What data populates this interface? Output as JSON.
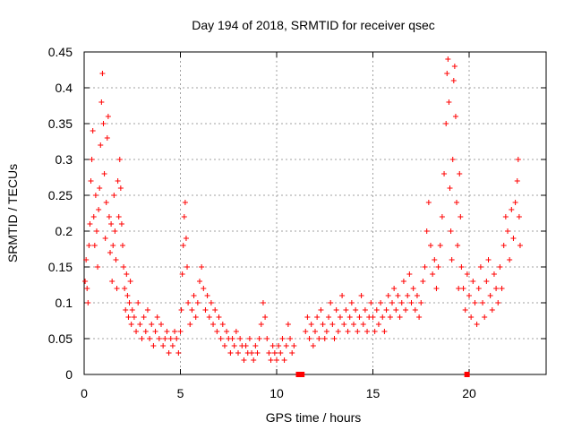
{
  "chart_data": {
    "type": "scatter",
    "title": "Day 194 of 2018, SRMTID for receiver qsec",
    "xlabel": "GPS time / hours",
    "ylabel": "SRMTID / TECUs",
    "xlim": [
      0,
      24.0
    ],
    "ylim": [
      0,
      0.45
    ],
    "x_ticks": [
      0,
      5,
      10,
      15,
      20
    ],
    "x_tick_labels": [
      "0",
      "5",
      "10",
      "15",
      "20"
    ],
    "y_ticks": [
      0,
      0.05,
      0.1,
      0.15,
      0.2,
      0.25,
      0.3,
      0.35,
      0.4,
      0.45
    ],
    "y_tick_labels": [
      "0",
      "0.05",
      "0.1",
      "0.15",
      "0.2",
      "0.25",
      "0.3",
      "0.35",
      "0.4",
      "0.45"
    ],
    "grid": true,
    "marker": "plus",
    "color": "#ff0000",
    "series": [
      {
        "name": "SRMTID",
        "points": [
          [
            0.05,
            0.13
          ],
          [
            0.1,
            0.16
          ],
          [
            0.15,
            0.12
          ],
          [
            0.2,
            0.1
          ],
          [
            0.25,
            0.18
          ],
          [
            0.3,
            0.21
          ],
          [
            0.35,
            0.27
          ],
          [
            0.4,
            0.3
          ],
          [
            0.45,
            0.34
          ],
          [
            0.5,
            0.22
          ],
          [
            0.55,
            0.18
          ],
          [
            0.6,
            0.25
          ],
          [
            0.65,
            0.2
          ],
          [
            0.7,
            0.15
          ],
          [
            0.75,
            0.23
          ],
          [
            0.8,
            0.26
          ],
          [
            0.85,
            0.32
          ],
          [
            0.9,
            0.38
          ],
          [
            0.95,
            0.42
          ],
          [
            1.0,
            0.35
          ],
          [
            1.05,
            0.28
          ],
          [
            1.1,
            0.19
          ],
          [
            1.15,
            0.24
          ],
          [
            1.2,
            0.33
          ],
          [
            1.25,
            0.36
          ],
          [
            1.3,
            0.22
          ],
          [
            1.35,
            0.17
          ],
          [
            1.4,
            0.21
          ],
          [
            1.45,
            0.13
          ],
          [
            1.5,
            0.18
          ],
          [
            1.55,
            0.25
          ],
          [
            1.6,
            0.2
          ],
          [
            1.65,
            0.16
          ],
          [
            1.7,
            0.12
          ],
          [
            1.75,
            0.27
          ],
          [
            1.8,
            0.22
          ],
          [
            1.85,
            0.3
          ],
          [
            1.9,
            0.26
          ],
          [
            1.95,
            0.21
          ],
          [
            2.0,
            0.18
          ],
          [
            2.05,
            0.15
          ],
          [
            2.1,
            0.12
          ],
          [
            2.15,
            0.09
          ],
          [
            2.2,
            0.14
          ],
          [
            2.25,
            0.11
          ],
          [
            2.3,
            0.08
          ],
          [
            2.35,
            0.1
          ],
          [
            2.4,
            0.13
          ],
          [
            2.45,
            0.07
          ],
          [
            2.5,
            0.09
          ],
          [
            2.6,
            0.08
          ],
          [
            2.7,
            0.06
          ],
          [
            2.8,
            0.1
          ],
          [
            2.9,
            0.07
          ],
          [
            3.0,
            0.05
          ],
          [
            3.1,
            0.08
          ],
          [
            3.2,
            0.06
          ],
          [
            3.3,
            0.09
          ],
          [
            3.4,
            0.05
          ],
          [
            3.5,
            0.07
          ],
          [
            3.6,
            0.04
          ],
          [
            3.7,
            0.06
          ],
          [
            3.8,
            0.08
          ],
          [
            3.9,
            0.05
          ],
          [
            4.0,
            0.07
          ],
          [
            4.1,
            0.04
          ],
          [
            4.2,
            0.05
          ],
          [
            4.3,
            0.06
          ],
          [
            4.4,
            0.03
          ],
          [
            4.5,
            0.05
          ],
          [
            4.6,
            0.04
          ],
          [
            4.7,
            0.06
          ],
          [
            4.8,
            0.05
          ],
          [
            4.9,
            0.03
          ],
          [
            5.0,
            0.06
          ],
          [
            5.05,
            0.09
          ],
          [
            5.1,
            0.14
          ],
          [
            5.15,
            0.18
          ],
          [
            5.2,
            0.22
          ],
          [
            5.25,
            0.24
          ],
          [
            5.3,
            0.19
          ],
          [
            5.35,
            0.15
          ],
          [
            5.4,
            0.1
          ],
          [
            5.5,
            0.07
          ],
          [
            5.6,
            0.09
          ],
          [
            5.7,
            0.11
          ],
          [
            5.8,
            0.08
          ],
          [
            5.9,
            0.1
          ],
          [
            6.0,
            0.13
          ],
          [
            6.1,
            0.15
          ],
          [
            6.2,
            0.12
          ],
          [
            6.3,
            0.09
          ],
          [
            6.4,
            0.11
          ],
          [
            6.5,
            0.08
          ],
          [
            6.6,
            0.1
          ],
          [
            6.7,
            0.07
          ],
          [
            6.8,
            0.09
          ],
          [
            6.9,
            0.06
          ],
          [
            7.0,
            0.08
          ],
          [
            7.1,
            0.05
          ],
          [
            7.2,
            0.07
          ],
          [
            7.3,
            0.04
          ],
          [
            7.4,
            0.06
          ],
          [
            7.5,
            0.05
          ],
          [
            7.6,
            0.03
          ],
          [
            7.7,
            0.05
          ],
          [
            7.8,
            0.04
          ],
          [
            7.9,
            0.06
          ],
          [
            8.0,
            0.03
          ],
          [
            8.1,
            0.05
          ],
          [
            8.2,
            0.04
          ],
          [
            8.3,
            0.02
          ],
          [
            8.4,
            0.04
          ],
          [
            8.5,
            0.03
          ],
          [
            8.6,
            0.05
          ],
          [
            8.7,
            0.03
          ],
          [
            8.8,
            0.02
          ],
          [
            8.9,
            0.04
          ],
          [
            9.0,
            0.03
          ],
          [
            9.1,
            0.05
          ],
          [
            9.2,
            0.07
          ],
          [
            9.3,
            0.1
          ],
          [
            9.4,
            0.08
          ],
          [
            9.5,
            0.05
          ],
          [
            9.6,
            0.03
          ],
          [
            9.7,
            0.02
          ],
          [
            9.8,
            0.04
          ],
          [
            9.9,
            0.03
          ],
          [
            10.0,
            0.02
          ],
          [
            10.1,
            0.04
          ],
          [
            10.2,
            0.03
          ],
          [
            10.3,
            0.05
          ],
          [
            10.4,
            0.02
          ],
          [
            10.5,
            0.04
          ],
          [
            10.6,
            0.07
          ],
          [
            10.7,
            0.05
          ],
          [
            10.8,
            0.03
          ],
          [
            10.9,
            0.04
          ],
          [
            11.5,
            0.06
          ],
          [
            11.6,
            0.08
          ],
          [
            11.7,
            0.05
          ],
          [
            11.8,
            0.07
          ],
          [
            11.9,
            0.04
          ],
          [
            12.0,
            0.06
          ],
          [
            12.1,
            0.08
          ],
          [
            12.2,
            0.05
          ],
          [
            12.3,
            0.09
          ],
          [
            12.4,
            0.07
          ],
          [
            12.5,
            0.05
          ],
          [
            12.6,
            0.06
          ],
          [
            12.7,
            0.08
          ],
          [
            12.8,
            0.1
          ],
          [
            12.9,
            0.07
          ],
          [
            13.0,
            0.05
          ],
          [
            13.1,
            0.09
          ],
          [
            13.2,
            0.06
          ],
          [
            13.3,
            0.08
          ],
          [
            13.4,
            0.11
          ],
          [
            13.5,
            0.07
          ],
          [
            13.6,
            0.09
          ],
          [
            13.7,
            0.06
          ],
          [
            13.8,
            0.08
          ],
          [
            13.9,
            0.1
          ],
          [
            14.0,
            0.07
          ],
          [
            14.1,
            0.09
          ],
          [
            14.2,
            0.06
          ],
          [
            14.3,
            0.08
          ],
          [
            14.4,
            0.11
          ],
          [
            14.5,
            0.07
          ],
          [
            14.6,
            0.09
          ],
          [
            14.7,
            0.06
          ],
          [
            14.8,
            0.08
          ],
          [
            14.9,
            0.1
          ],
          [
            15.0,
            0.08
          ],
          [
            15.1,
            0.06
          ],
          [
            15.2,
            0.09
          ],
          [
            15.3,
            0.07
          ],
          [
            15.4,
            0.1
          ],
          [
            15.5,
            0.08
          ],
          [
            15.6,
            0.06
          ],
          [
            15.7,
            0.09
          ],
          [
            15.8,
            0.11
          ],
          [
            15.9,
            0.08
          ],
          [
            16.0,
            0.1
          ],
          [
            16.1,
            0.12
          ],
          [
            16.2,
            0.09
          ],
          [
            16.3,
            0.11
          ],
          [
            16.4,
            0.08
          ],
          [
            16.5,
            0.1
          ],
          [
            16.6,
            0.13
          ],
          [
            16.7,
            0.09
          ],
          [
            16.8,
            0.11
          ],
          [
            16.9,
            0.14
          ],
          [
            17.0,
            0.1
          ],
          [
            17.1,
            0.12
          ],
          [
            17.2,
            0.09
          ],
          [
            17.3,
            0.11
          ],
          [
            17.4,
            0.08
          ],
          [
            17.5,
            0.1
          ],
          [
            17.6,
            0.13
          ],
          [
            17.7,
            0.15
          ],
          [
            17.8,
            0.2
          ],
          [
            17.9,
            0.24
          ],
          [
            18.0,
            0.18
          ],
          [
            18.1,
            0.14
          ],
          [
            18.2,
            0.16
          ],
          [
            18.3,
            0.12
          ],
          [
            18.4,
            0.15
          ],
          [
            18.5,
            0.18
          ],
          [
            18.6,
            0.22
          ],
          [
            18.7,
            0.28
          ],
          [
            18.8,
            0.35
          ],
          [
            18.85,
            0.42
          ],
          [
            18.9,
            0.44
          ],
          [
            18.95,
            0.38
          ],
          [
            19.0,
            0.26
          ],
          [
            19.05,
            0.2
          ],
          [
            19.1,
            0.16
          ],
          [
            19.15,
            0.3
          ],
          [
            19.2,
            0.41
          ],
          [
            19.25,
            0.43
          ],
          [
            19.3,
            0.36
          ],
          [
            19.35,
            0.24
          ],
          [
            19.4,
            0.18
          ],
          [
            19.45,
            0.12
          ],
          [
            19.5,
            0.28
          ],
          [
            19.55,
            0.22
          ],
          [
            19.6,
            0.15
          ],
          [
            19.7,
            0.12
          ],
          [
            19.8,
            0.09
          ],
          [
            19.9,
            0.14
          ],
          [
            20.0,
            0.11
          ],
          [
            20.1,
            0.08
          ],
          [
            20.2,
            0.13
          ],
          [
            20.3,
            0.1
          ],
          [
            20.4,
            0.07
          ],
          [
            20.5,
            0.12
          ],
          [
            20.6,
            0.15
          ],
          [
            20.7,
            0.1
          ],
          [
            20.8,
            0.08
          ],
          [
            20.9,
            0.13
          ],
          [
            21.0,
            0.16
          ],
          [
            21.1,
            0.11
          ],
          [
            21.2,
            0.09
          ],
          [
            21.3,
            0.14
          ],
          [
            21.4,
            0.12
          ],
          [
            21.5,
            0.1
          ],
          [
            21.6,
            0.15
          ],
          [
            21.7,
            0.12
          ],
          [
            21.8,
            0.18
          ],
          [
            21.9,
            0.22
          ],
          [
            22.0,
            0.2
          ],
          [
            22.1,
            0.16
          ],
          [
            22.2,
            0.23
          ],
          [
            22.3,
            0.19
          ],
          [
            22.4,
            0.24
          ],
          [
            22.5,
            0.27
          ],
          [
            22.55,
            0.3
          ],
          [
            22.6,
            0.22
          ],
          [
            22.65,
            0.18
          ]
        ]
      }
    ],
    "missing_data_markers": [
      {
        "x_start": 11.0,
        "x_end": 11.45,
        "y": 0
      },
      {
        "x_start": 19.75,
        "x_end": 19.8,
        "y": 0
      }
    ]
  }
}
